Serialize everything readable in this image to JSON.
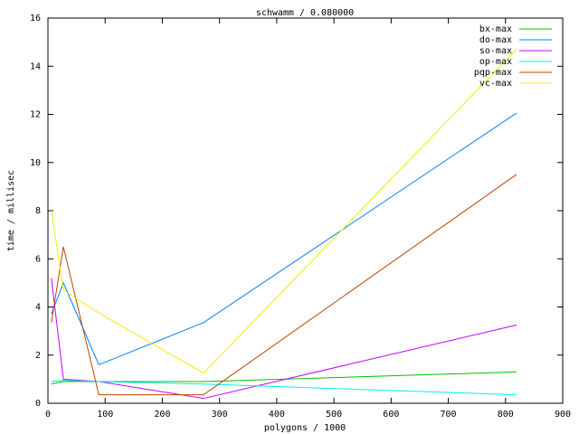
{
  "chart_data": {
    "type": "line",
    "title": "schwamm / 0.080000",
    "x_label": "polygons / 1000",
    "y_label": "time / millisec",
    "x": [
      6,
      27,
      89,
      272,
      819
    ],
    "series": [
      {
        "name": "bx-max",
        "color": "#00c000",
        "values": [
          0.8,
          0.9,
          0.9,
          0.9,
          1.3
        ]
      },
      {
        "name": "do-max",
        "color": "#0080ff",
        "values": [
          3.7,
          5.0,
          1.6,
          3.35,
          12.05
        ]
      },
      {
        "name": "so-max",
        "color": "#c000ff",
        "values": [
          5.2,
          1.0,
          0.9,
          0.2,
          3.25
        ]
      },
      {
        "name": "op-max",
        "color": "#00eeee",
        "values": [
          0.9,
          0.95,
          0.9,
          0.8,
          0.35
        ]
      },
      {
        "name": "pqp-max",
        "color": "#c04000",
        "values": [
          3.35,
          6.5,
          0.35,
          0.35,
          9.5
        ]
      },
      {
        "name": "vc-max",
        "color": "#eeee00",
        "values": [
          8.0,
          4.7,
          3.75,
          1.25,
          14.7
        ]
      }
    ],
    "xlim": [
      0,
      900
    ],
    "xticks": [
      0,
      100,
      200,
      300,
      400,
      500,
      600,
      700,
      800,
      900
    ],
    "ylim": [
      0,
      16
    ],
    "yticks": [
      0,
      2,
      4,
      6,
      8,
      10,
      12,
      14,
      16
    ],
    "grid": false,
    "legend": "top-right"
  }
}
